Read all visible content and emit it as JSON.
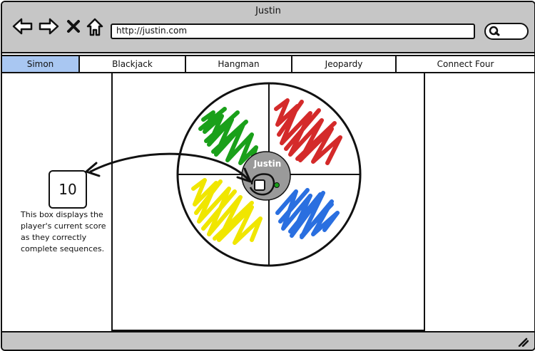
{
  "window": {
    "title": "Justin",
    "address": "http://justin.com"
  },
  "toolbar": {
    "back_icon": "arrow-left-icon",
    "forward_icon": "arrow-right-icon",
    "stop_icon": "close-icon",
    "home_icon": "home-icon",
    "search_icon": "search-icon"
  },
  "tabs": [
    {
      "label": "Simon",
      "active": true
    },
    {
      "label": "Blackjack",
      "active": false
    },
    {
      "label": "Hangman",
      "active": false
    },
    {
      "label": "Jeopardy",
      "active": false
    },
    {
      "label": "Connect Four",
      "active": false
    }
  ],
  "game": {
    "player_name": "Justin",
    "score": "10",
    "score_note": "This box displays the player's current score as they correctly complete sequences.",
    "quadrant_colors": {
      "top_left": "#1aa01a",
      "top_right": "#d42a2a",
      "bottom_left": "#f0e600",
      "bottom_right": "#2a6fe0"
    },
    "center_color": "#9a9a9a",
    "active_tab_color": "#a9c7f2"
  }
}
